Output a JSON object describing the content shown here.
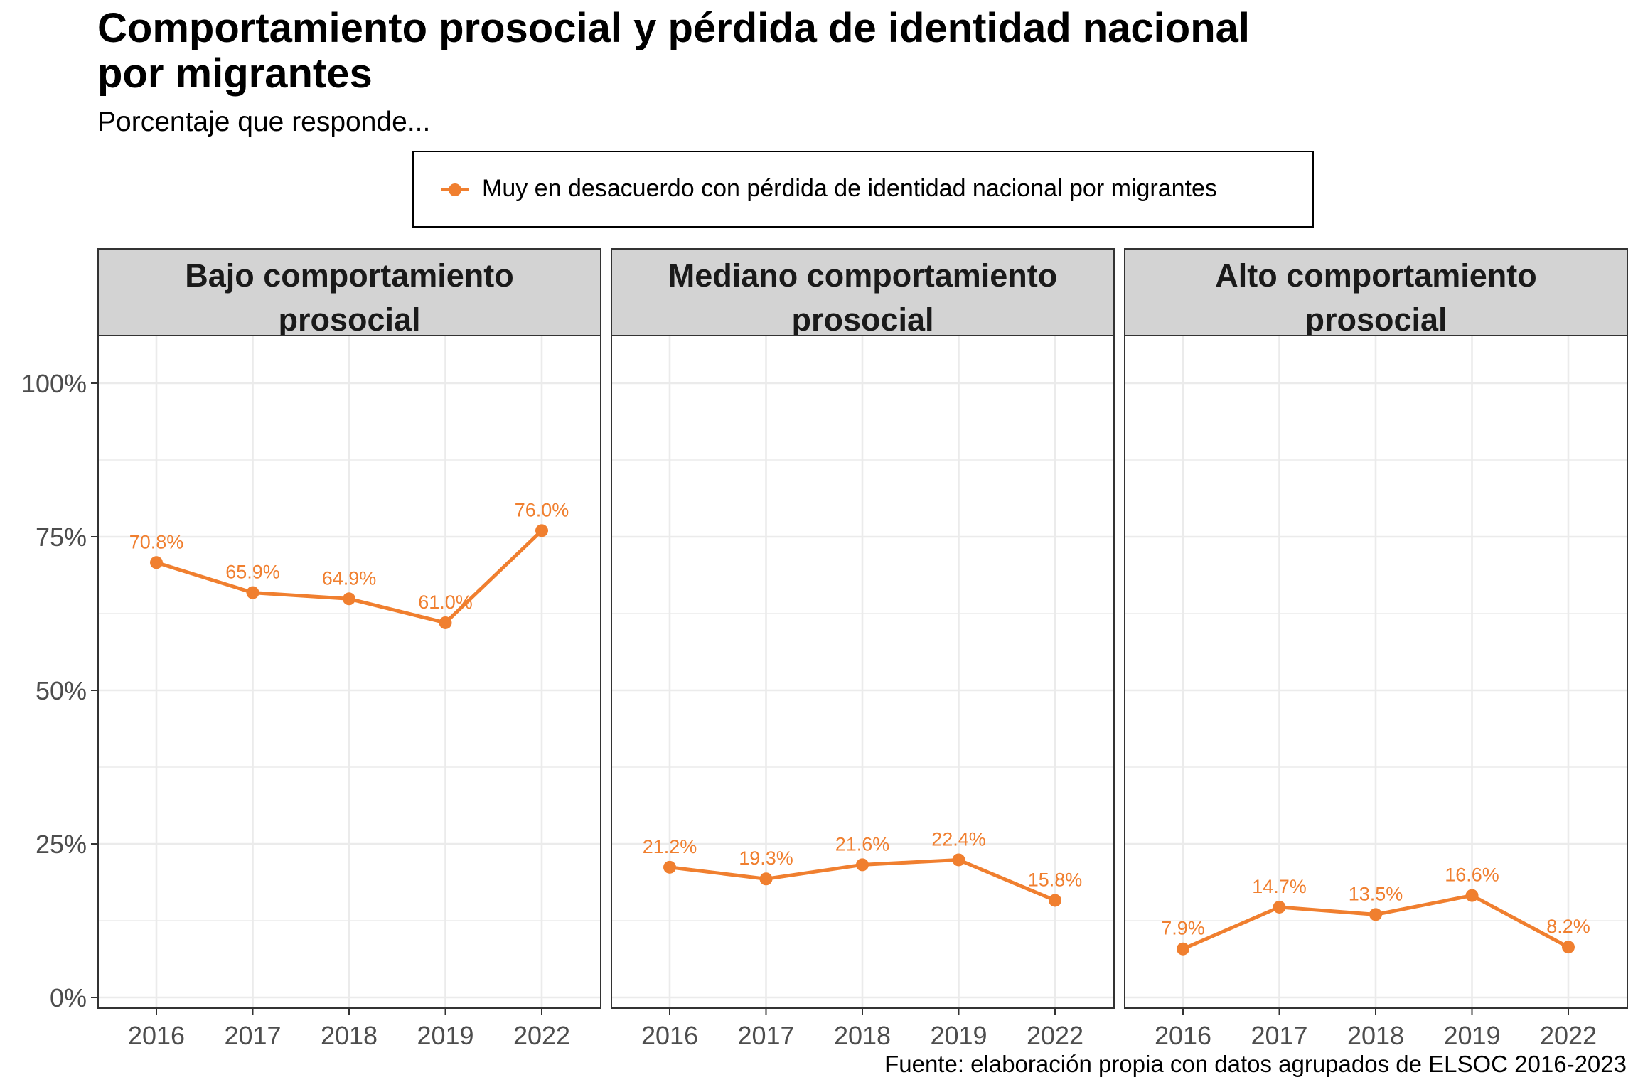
{
  "title_lines": [
    "Comportamiento prosocial y pérdida de identidad nacional",
    "por migrantes"
  ],
  "subtitle": "Porcentaje que responde...",
  "caption": "Fuente: elaboración propia con datos agrupados de ELSOC 2016-2023",
  "colors": {
    "series": "#F07F2F",
    "strip_bg": "#D3D3D3",
    "grid": "#EBEBEB",
    "panel_border": "#333333"
  },
  "chart_data": {
    "type": "line",
    "facet_by": "comportamiento prosocial",
    "x": [
      "2016",
      "2017",
      "2018",
      "2019",
      "2022"
    ],
    "ylim": [
      0,
      1.08
    ],
    "yticks": [
      0,
      0.25,
      0.5,
      0.75,
      1.0
    ],
    "ytick_labels": [
      "0%",
      "25%",
      "50%",
      "75%",
      "100%"
    ],
    "grid": true,
    "legend_position": "top",
    "series": [
      {
        "name": "Muy en desacuerdo con pérdida de identidad nacional por migrantes",
        "color": "#F07F2F",
        "panels": [
          {
            "strip": [
              "Bajo comportamiento",
              "prosocial"
            ],
            "values": [
              0.708,
              0.659,
              0.649,
              0.61,
              0.76
            ],
            "labels": [
              "70.8%",
              "65.9%",
              "64.9%",
              "61.0%",
              "76.0%"
            ]
          },
          {
            "strip": [
              "Mediano comportamiento",
              "prosocial"
            ],
            "values": [
              0.212,
              0.193,
              0.216,
              0.224,
              0.158
            ],
            "labels": [
              "21.2%",
              "19.3%",
              "21.6%",
              "22.4%",
              "15.8%"
            ]
          },
          {
            "strip": [
              "Alto comportamiento",
              "prosocial"
            ],
            "values": [
              0.079,
              0.147,
              0.135,
              0.166,
              0.082
            ],
            "labels": [
              "7.9%",
              "14.7%",
              "13.5%",
              "16.6%",
              "8.2%"
            ]
          }
        ]
      }
    ]
  }
}
